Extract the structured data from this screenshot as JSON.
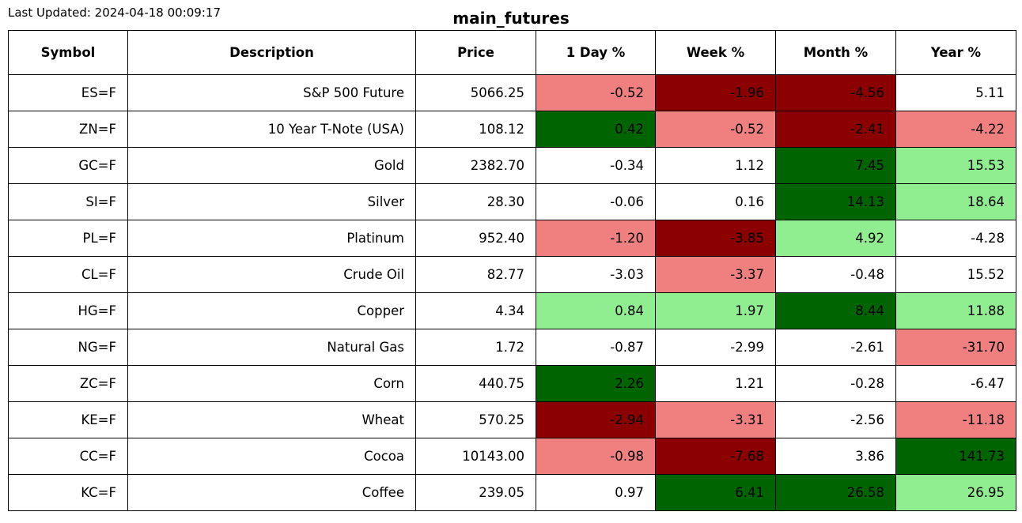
{
  "header": {
    "last_updated": "Last Updated: 2024-04-18 00:09:17",
    "title": "main_futures"
  },
  "colors": {
    "strong_negative": "#8b0000",
    "negative": "#f08080",
    "neutral": "#ffffff",
    "positive": "#90ee90",
    "strong_positive": "#006400"
  },
  "chart_data": {
    "type": "table",
    "title": "main_futures",
    "columns": [
      "Symbol",
      "Description",
      "Price",
      "1 Day %",
      "Week %",
      "Month %",
      "Year %"
    ],
    "rows": [
      {
        "symbol": "ES=F",
        "description": "S&P 500 Future",
        "price": "5066.25",
        "values": [
          "-0.52",
          "-1.96",
          "-4.56",
          "5.11"
        ],
        "levels": [
          "negative",
          "strong_negative",
          "strong_negative",
          "neutral"
        ]
      },
      {
        "symbol": "ZN=F",
        "description": "10 Year T-Note (USA)",
        "price": "108.12",
        "values": [
          "0.42",
          "-0.52",
          "-2.41",
          "-4.22"
        ],
        "levels": [
          "strong_positive",
          "negative",
          "strong_negative",
          "negative"
        ]
      },
      {
        "symbol": "GC=F",
        "description": "Gold",
        "price": "2382.70",
        "values": [
          "-0.34",
          "1.12",
          "7.45",
          "15.53"
        ],
        "levels": [
          "neutral",
          "neutral",
          "strong_positive",
          "positive"
        ]
      },
      {
        "symbol": "SI=F",
        "description": "Silver",
        "price": "28.30",
        "values": [
          "-0.06",
          "0.16",
          "14.13",
          "18.64"
        ],
        "levels": [
          "neutral",
          "neutral",
          "strong_positive",
          "positive"
        ]
      },
      {
        "symbol": "PL=F",
        "description": "Platinum",
        "price": "952.40",
        "values": [
          "-1.20",
          "-3.85",
          "4.92",
          "-4.28"
        ],
        "levels": [
          "negative",
          "strong_negative",
          "positive",
          "neutral"
        ]
      },
      {
        "symbol": "CL=F",
        "description": "Crude Oil",
        "price": "82.77",
        "values": [
          "-3.03",
          "-3.37",
          "-0.48",
          "15.52"
        ],
        "levels": [
          "neutral",
          "negative",
          "neutral",
          "neutral"
        ]
      },
      {
        "symbol": "HG=F",
        "description": "Copper",
        "price": "4.34",
        "values": [
          "0.84",
          "1.97",
          "8.44",
          "11.88"
        ],
        "levels": [
          "positive",
          "positive",
          "strong_positive",
          "positive"
        ]
      },
      {
        "symbol": "NG=F",
        "description": "Natural Gas",
        "price": "1.72",
        "values": [
          "-0.87",
          "-2.99",
          "-2.61",
          "-31.70"
        ],
        "levels": [
          "neutral",
          "neutral",
          "neutral",
          "negative"
        ]
      },
      {
        "symbol": "ZC=F",
        "description": "Corn",
        "price": "440.75",
        "values": [
          "2.26",
          "1.21",
          "-0.28",
          "-6.47"
        ],
        "levels": [
          "strong_positive",
          "neutral",
          "neutral",
          "neutral"
        ]
      },
      {
        "symbol": "KE=F",
        "description": "Wheat",
        "price": "570.25",
        "values": [
          "-2.94",
          "-3.31",
          "-2.56",
          "-11.18"
        ],
        "levels": [
          "strong_negative",
          "negative",
          "neutral",
          "negative"
        ]
      },
      {
        "symbol": "CC=F",
        "description": "Cocoa",
        "price": "10143.00",
        "values": [
          "-0.98",
          "-7.68",
          "3.86",
          "141.73"
        ],
        "levels": [
          "negative",
          "strong_negative",
          "neutral",
          "strong_positive"
        ]
      },
      {
        "symbol": "KC=F",
        "description": "Coffee",
        "price": "239.05",
        "values": [
          "0.97",
          "6.41",
          "26.58",
          "26.95"
        ],
        "levels": [
          "neutral",
          "strong_positive",
          "strong_positive",
          "positive"
        ]
      }
    ]
  }
}
